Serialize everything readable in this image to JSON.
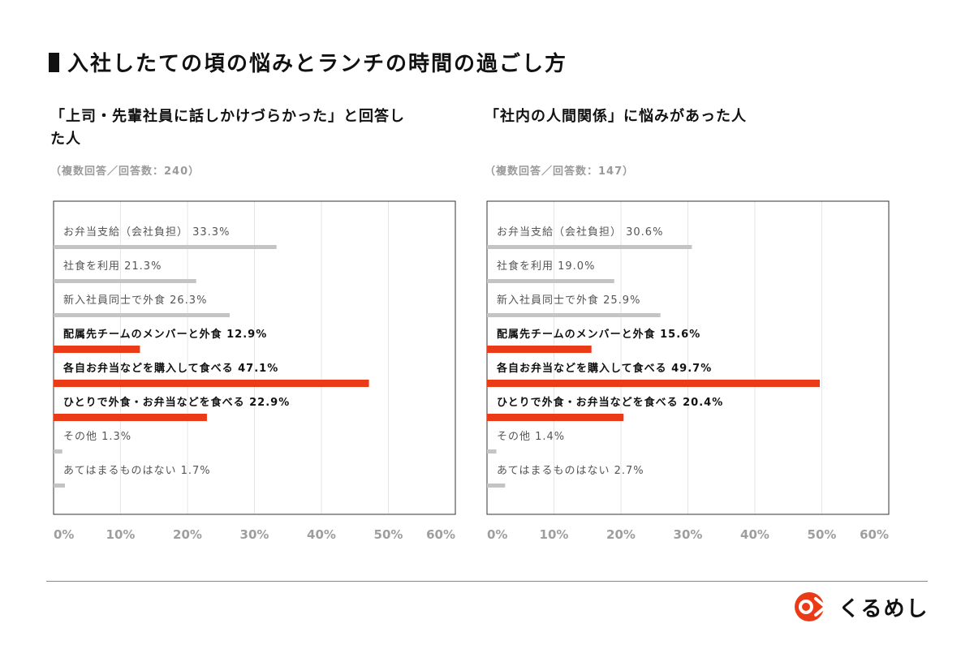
{
  "page_title": "入社したての頃の悩みとランチの時間の過ごし方",
  "brand": {
    "name": "くるめし",
    "accent": "#ea3a16"
  },
  "colors": {
    "highlight": "#ea3a16",
    "normal": "#c4c4c4",
    "axis": "#333333",
    "grid": "#e6e6e6"
  },
  "panels": [
    {
      "heading": "「上司・先輩社員に話しかけづらかった」と回答した人",
      "note": "（複数回答／回答数：240）"
    },
    {
      "heading": "「社内の人間関係」に悩みがあった人",
      "note": "（複数回答／回答数：147）"
    }
  ],
  "chart_data": [
    {
      "type": "bar",
      "orientation": "horizontal",
      "title": "「上司・先輩社員に話しかけづらかった」と回答した人",
      "xlim": [
        0,
        60
      ],
      "ticks": [
        "0%",
        "10%",
        "20%",
        "30%",
        "40%",
        "50%",
        "60%"
      ],
      "categories": [
        "お弁当支給（会社負担）",
        "社食を利用",
        "新入社員同士で外食",
        "配属先チームのメンバーと外食",
        "各自お弁当などを購入して食べる",
        "ひとりで外食・お弁当などを食べる",
        "その他",
        "あてはまるものはない"
      ],
      "labels": [
        "お弁当支給（会社負担） 33.3%",
        "社食を利用 21.3%",
        "新入社員同士で外食 26.3%",
        "配属先チームのメンバーと外食 12.9%",
        "各自お弁当などを購入して食べる 47.1%",
        "ひとりで外食・お弁当などを食べる 22.9%",
        "その他 1.3%",
        "あてはまるものはない 1.7%"
      ],
      "values": [
        33.3,
        21.3,
        26.3,
        12.9,
        47.1,
        22.9,
        1.3,
        1.7
      ],
      "highlighted": [
        false,
        false,
        false,
        true,
        true,
        true,
        false,
        false
      ]
    },
    {
      "type": "bar",
      "orientation": "horizontal",
      "title": "「社内の人間関係」に悩みがあった人",
      "xlim": [
        0,
        60
      ],
      "ticks": [
        "0%",
        "10%",
        "20%",
        "30%",
        "40%",
        "50%",
        "60%"
      ],
      "categories": [
        "お弁当支給（会社負担）",
        "社食を利用",
        "新入社員同士で外食",
        "配属先チームのメンバーと外食",
        "各自お弁当などを購入して食べる",
        "ひとりで外食・お弁当などを食べる",
        "その他",
        "あてはまるものはない"
      ],
      "labels": [
        "お弁当支給（会社負担） 30.6%",
        "社食を利用 19.0%",
        "新入社員同士で外食 25.9%",
        "配属先チームのメンバーと外食 15.6%",
        "各自お弁当などを購入して食べる 49.7%",
        "ひとりで外食・お弁当などを食べる 20.4%",
        "その他 1.4%",
        "あてはまるものはない 2.7%"
      ],
      "values": [
        30.6,
        19.0,
        25.9,
        15.6,
        49.7,
        20.4,
        1.4,
        2.7
      ],
      "highlighted": [
        false,
        false,
        false,
        true,
        true,
        true,
        false,
        false
      ]
    }
  ]
}
